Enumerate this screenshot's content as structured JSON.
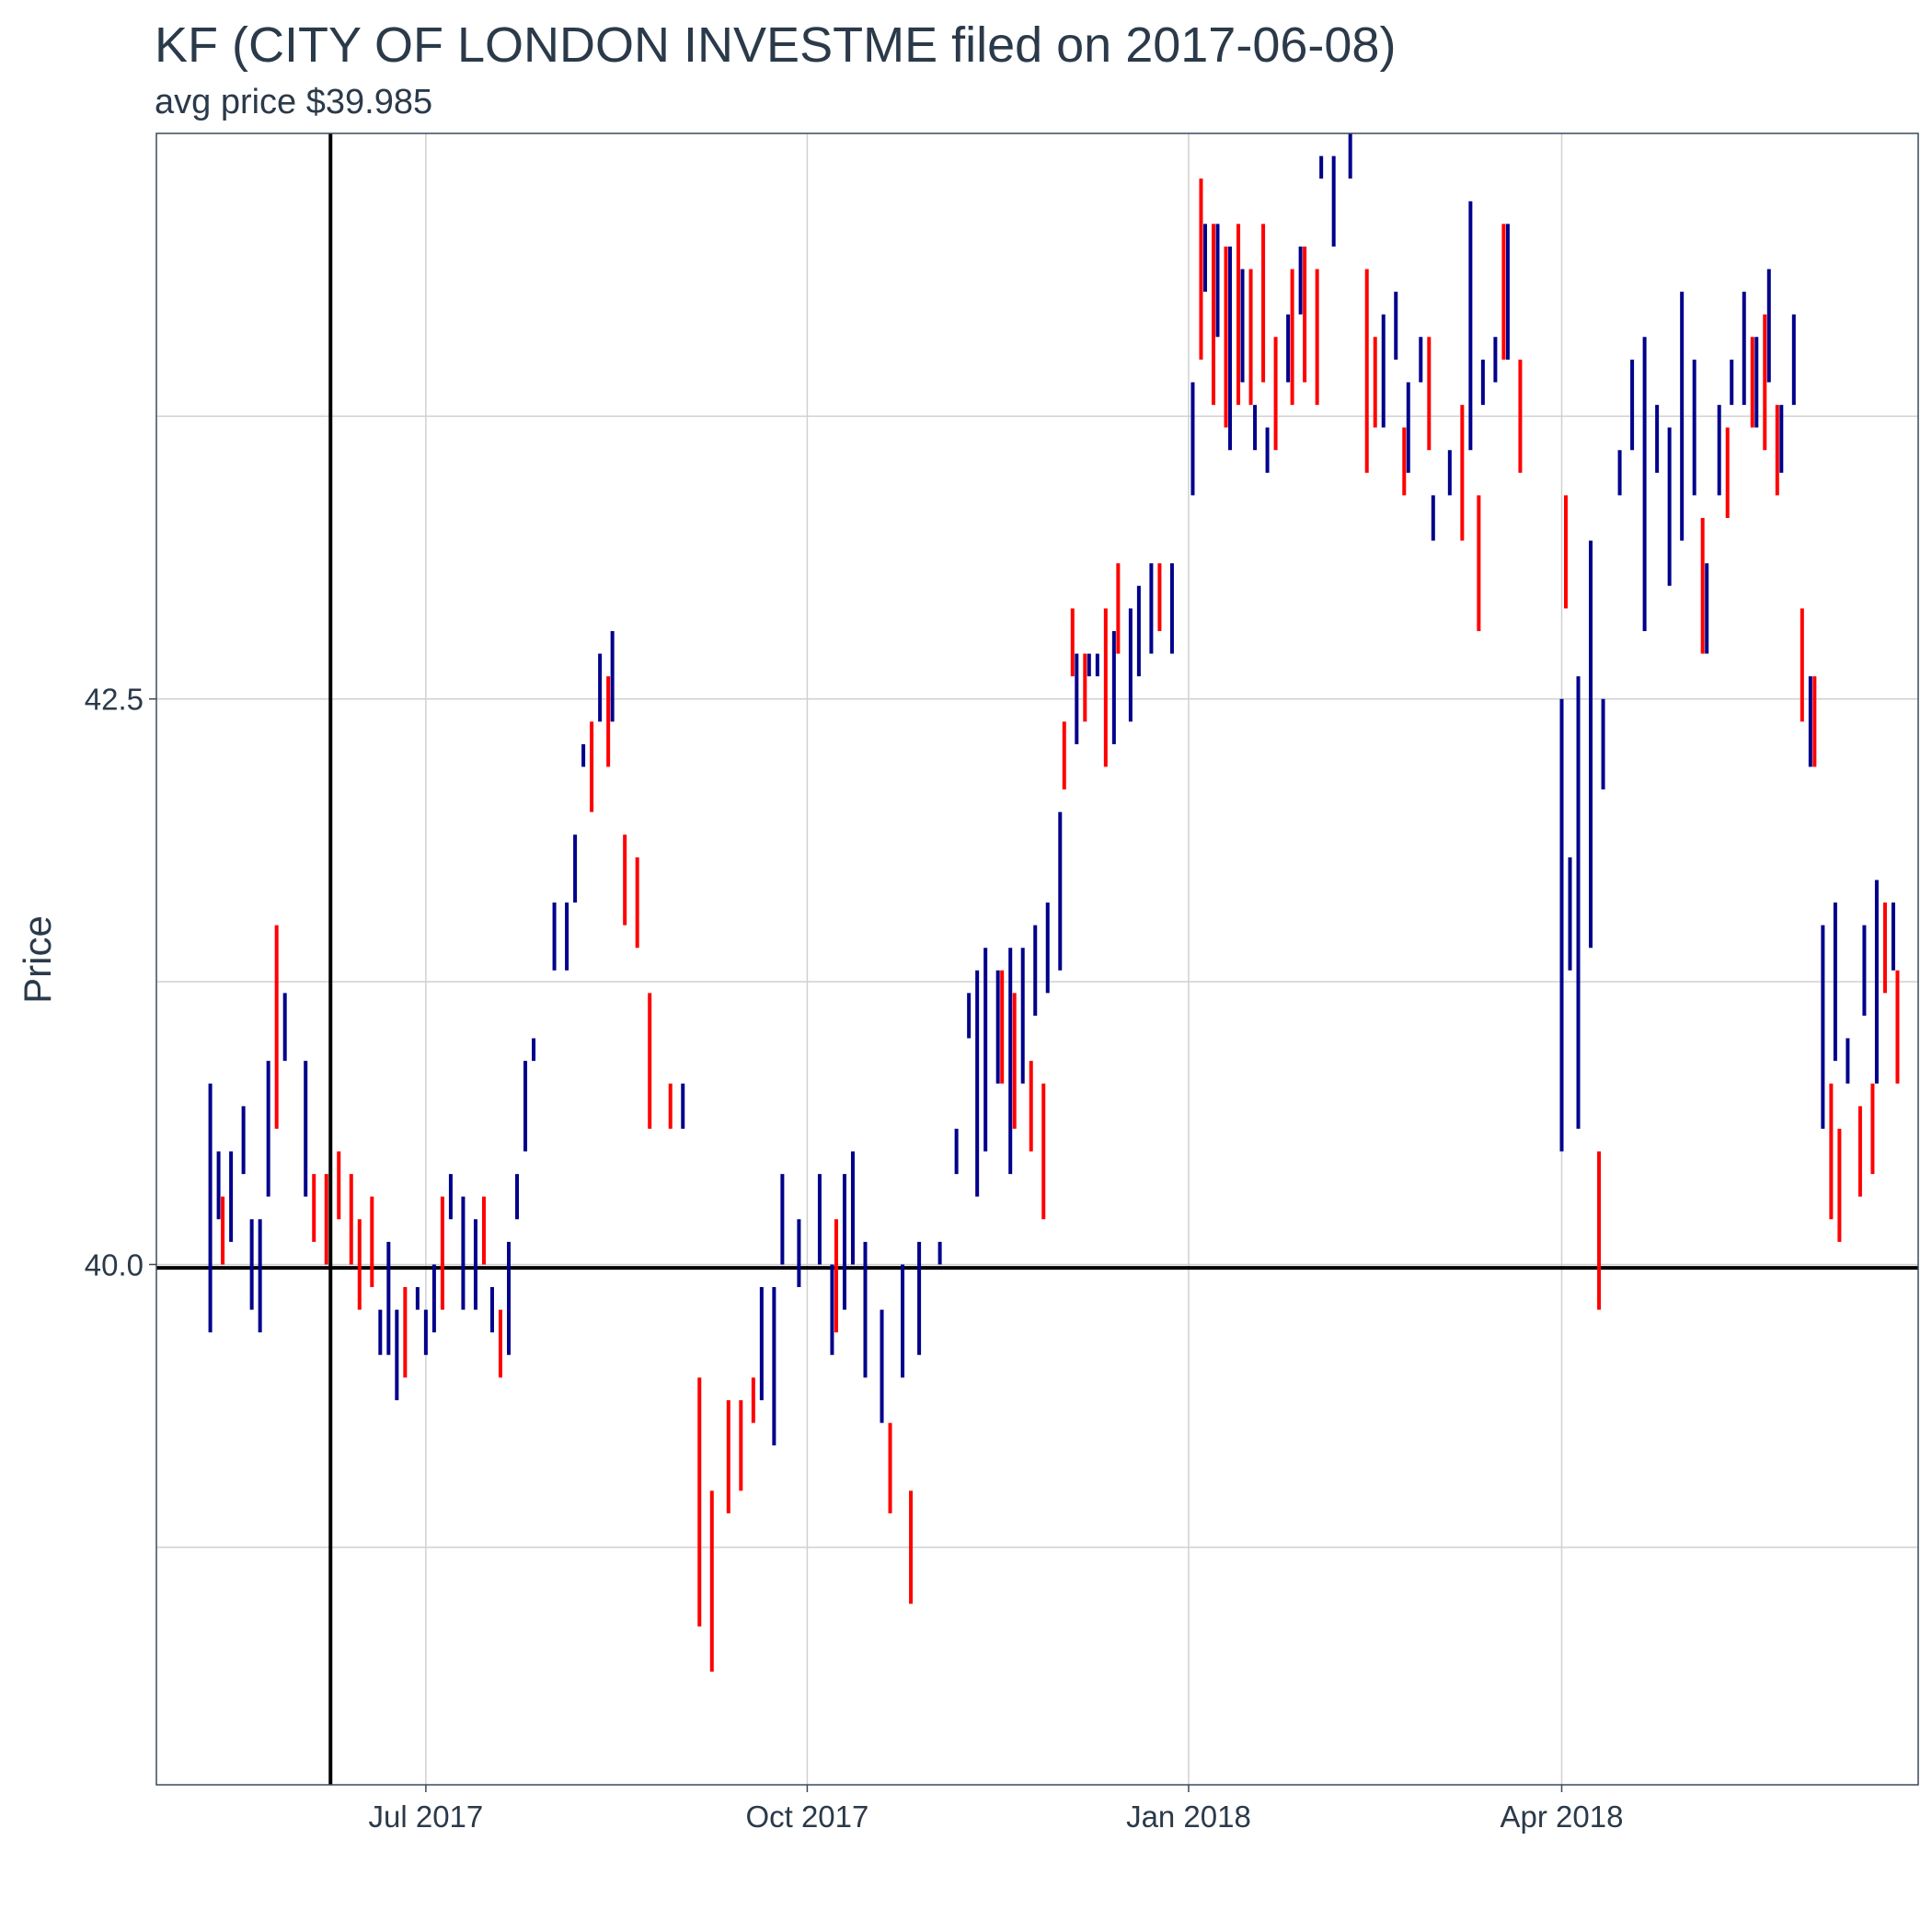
{
  "chart_data": {
    "type": "ohlc-bar",
    "title": "KF (CITY OF LONDON INVESTME filed on 2017-06-08)",
    "subtitle": "avg price $39.985",
    "ylabel": "Price",
    "xlabel": "",
    "xlim": [
      "2017-04-27",
      "2018-06-26"
    ],
    "ylim": [
      37.7,
      45.0
    ],
    "x_ticks": [
      {
        "date": "2017-07-01",
        "label": "Jul 2017"
      },
      {
        "date": "2017-10-01",
        "label": "Oct 2017"
      },
      {
        "date": "2018-01-01",
        "label": "Jan 2018"
      },
      {
        "date": "2018-04-01",
        "label": "Apr 2018"
      }
    ],
    "y_ticks": [
      {
        "value": 40.0,
        "label": "40.0"
      },
      {
        "value": 42.5,
        "label": "42.5"
      }
    ],
    "y_grid": [
      38.75,
      40.0,
      41.25,
      42.5,
      43.75
    ],
    "reference_lines": {
      "vertical_date": "2017-06-08",
      "horizontal_price": 39.985
    },
    "colors": {
      "up": "#00008b",
      "down": "#ff0000",
      "reference": "#000000",
      "grid": "#d0d0d0",
      "border": "#3a4a5a"
    },
    "grid": true,
    "legend": "none",
    "series": [
      {
        "name": "up",
        "bars": [
          [
            "2017-05-10",
            39.7,
            40.8
          ],
          [
            "2017-05-12",
            40.2,
            40.5
          ],
          [
            "2017-05-15",
            40.1,
            40.5
          ],
          [
            "2017-05-18",
            40.4,
            40.7
          ],
          [
            "2017-05-20",
            39.8,
            40.2
          ],
          [
            "2017-05-22",
            39.7,
            40.2
          ],
          [
            "2017-05-24",
            40.3,
            40.9
          ],
          [
            "2017-05-28",
            40.9,
            41.2
          ],
          [
            "2017-06-02",
            40.3,
            40.9
          ],
          [
            "2017-06-20",
            39.6,
            39.8
          ],
          [
            "2017-06-22",
            39.6,
            40.1
          ],
          [
            "2017-06-24",
            39.4,
            39.8
          ],
          [
            "2017-06-29",
            39.8,
            39.9
          ],
          [
            "2017-07-01",
            39.6,
            39.8
          ],
          [
            "2017-07-03",
            39.7,
            40.0
          ],
          [
            "2017-07-07",
            40.2,
            40.4
          ],
          [
            "2017-07-10",
            39.8,
            40.3
          ],
          [
            "2017-07-13",
            39.8,
            40.2
          ],
          [
            "2017-07-17",
            39.7,
            39.9
          ],
          [
            "2017-07-21",
            39.6,
            40.1
          ],
          [
            "2017-07-23",
            40.2,
            40.4
          ],
          [
            "2017-07-25",
            40.5,
            40.9
          ],
          [
            "2017-07-27",
            40.9,
            41.0
          ],
          [
            "2017-08-01",
            41.3,
            41.6
          ],
          [
            "2017-08-04",
            41.3,
            41.6
          ],
          [
            "2017-08-06",
            41.6,
            41.9
          ],
          [
            "2017-08-08",
            42.2,
            42.3
          ],
          [
            "2017-08-12",
            42.4,
            42.7
          ],
          [
            "2017-08-15",
            42.4,
            42.8
          ],
          [
            "2017-09-01",
            40.6,
            40.8
          ],
          [
            "2017-09-20",
            39.4,
            39.9
          ],
          [
            "2017-09-23",
            39.2,
            39.9
          ],
          [
            "2017-09-25",
            40.0,
            40.4
          ],
          [
            "2017-09-29",
            39.9,
            40.2
          ],
          [
            "2017-10-04",
            40.0,
            40.4
          ],
          [
            "2017-10-07",
            39.6,
            40.0
          ],
          [
            "2017-10-10",
            39.8,
            40.4
          ],
          [
            "2017-10-12",
            40.0,
            40.5
          ],
          [
            "2017-10-15",
            39.5,
            40.1
          ],
          [
            "2017-10-19",
            39.3,
            39.8
          ],
          [
            "2017-10-24",
            39.5,
            40.0
          ],
          [
            "2017-10-28",
            39.6,
            40.1
          ],
          [
            "2017-11-02",
            40.0,
            40.1
          ],
          [
            "2017-11-06",
            40.4,
            40.6
          ],
          [
            "2017-11-09",
            41.0,
            41.2
          ],
          [
            "2017-11-11",
            40.3,
            41.3
          ],
          [
            "2017-11-13",
            40.5,
            41.4
          ],
          [
            "2017-11-16",
            40.8,
            41.3
          ],
          [
            "2017-11-19",
            40.4,
            41.4
          ],
          [
            "2017-11-22",
            40.8,
            41.4
          ],
          [
            "2017-11-25",
            41.1,
            41.5
          ],
          [
            "2017-11-28",
            41.2,
            41.6
          ],
          [
            "2017-12-01",
            41.3,
            42.0
          ],
          [
            "2017-12-05",
            42.3,
            42.7
          ],
          [
            "2017-12-08",
            42.6,
            42.7
          ],
          [
            "2017-12-10",
            42.6,
            42.7
          ],
          [
            "2017-12-14",
            42.3,
            42.8
          ],
          [
            "2017-12-18",
            42.4,
            42.9
          ],
          [
            "2017-12-20",
            42.6,
            43.0
          ],
          [
            "2017-12-23",
            42.7,
            43.1
          ],
          [
            "2017-12-28",
            42.7,
            43.1
          ],
          [
            "2018-01-02",
            43.4,
            43.9
          ],
          [
            "2018-01-05",
            44.3,
            44.6
          ],
          [
            "2018-01-08",
            44.1,
            44.6
          ],
          [
            "2018-01-11",
            43.6,
            44.5
          ],
          [
            "2018-01-14",
            43.9,
            44.4
          ],
          [
            "2018-01-17",
            43.6,
            43.8
          ],
          [
            "2018-01-20",
            43.5,
            43.7
          ],
          [
            "2018-01-25",
            43.9,
            44.2
          ],
          [
            "2018-01-28",
            44.2,
            44.5
          ],
          [
            "2018-02-02",
            44.8,
            44.9
          ],
          [
            "2018-02-05",
            44.5,
            44.9
          ],
          [
            "2018-02-09",
            44.8,
            45.0
          ],
          [
            "2018-02-17",
            43.7,
            44.2
          ],
          [
            "2018-02-20",
            44.0,
            44.3
          ],
          [
            "2018-02-23",
            43.5,
            43.9
          ],
          [
            "2018-02-26",
            43.9,
            44.1
          ],
          [
            "2018-03-01",
            43.2,
            43.4
          ],
          [
            "2018-03-05",
            43.4,
            43.6
          ],
          [
            "2018-03-10",
            43.6,
            44.7
          ],
          [
            "2018-03-13",
            43.8,
            44.0
          ],
          [
            "2018-03-16",
            43.9,
            44.1
          ],
          [
            "2018-03-19",
            44.0,
            44.6
          ],
          [
            "2018-04-01",
            40.5,
            42.5
          ],
          [
            "2018-04-03",
            41.3,
            41.8
          ],
          [
            "2018-04-05",
            40.6,
            42.6
          ],
          [
            "2018-04-08",
            41.4,
            43.2
          ],
          [
            "2018-04-11",
            42.1,
            42.5
          ],
          [
            "2018-04-15",
            43.4,
            43.6
          ],
          [
            "2018-04-18",
            43.6,
            44.0
          ],
          [
            "2018-04-21",
            42.8,
            44.1
          ],
          [
            "2018-04-24",
            43.5,
            43.8
          ],
          [
            "2018-04-27",
            43.0,
            43.7
          ],
          [
            "2018-04-30",
            43.2,
            44.3
          ],
          [
            "2018-05-03",
            43.4,
            44.0
          ],
          [
            "2018-05-06",
            42.7,
            43.1
          ],
          [
            "2018-05-09",
            43.4,
            43.8
          ],
          [
            "2018-05-12",
            43.8,
            44.0
          ],
          [
            "2018-05-15",
            43.8,
            44.3
          ],
          [
            "2018-05-18",
            43.7,
            44.1
          ],
          [
            "2018-05-21",
            43.9,
            44.4
          ],
          [
            "2018-05-24",
            43.5,
            43.8
          ],
          [
            "2018-05-27",
            43.8,
            44.2
          ],
          [
            "2018-05-31",
            42.2,
            42.6
          ],
          [
            "2018-06-03",
            40.6,
            41.5
          ],
          [
            "2018-06-06",
            40.9,
            41.6
          ],
          [
            "2018-06-09",
            40.8,
            41.0
          ],
          [
            "2018-06-13",
            41.1,
            41.5
          ],
          [
            "2018-06-16",
            40.8,
            41.7
          ],
          [
            "2018-06-20",
            41.3,
            41.6
          ]
        ]
      },
      {
        "name": "down",
        "bars": [
          [
            "2017-05-13",
            40.0,
            40.3
          ],
          [
            "2017-05-26",
            40.6,
            41.5
          ],
          [
            "2017-06-04",
            40.1,
            40.4
          ],
          [
            "2017-06-07",
            40.0,
            40.4
          ],
          [
            "2017-06-10",
            40.2,
            40.5
          ],
          [
            "2017-06-13",
            40.0,
            40.4
          ],
          [
            "2017-06-15",
            39.8,
            40.2
          ],
          [
            "2017-06-18",
            39.9,
            40.3
          ],
          [
            "2017-06-26",
            39.5,
            39.9
          ],
          [
            "2017-07-05",
            39.8,
            40.3
          ],
          [
            "2017-07-15",
            40.0,
            40.3
          ],
          [
            "2017-07-19",
            39.5,
            39.8
          ],
          [
            "2017-08-10",
            42.0,
            42.4
          ],
          [
            "2017-08-14",
            42.2,
            42.6
          ],
          [
            "2017-08-18",
            41.5,
            41.9
          ],
          [
            "2017-08-21",
            41.4,
            41.8
          ],
          [
            "2017-08-24",
            40.6,
            41.2
          ],
          [
            "2017-08-29",
            40.6,
            40.8
          ],
          [
            "2017-09-05",
            38.4,
            39.5
          ],
          [
            "2017-09-08",
            38.2,
            39.0
          ],
          [
            "2017-09-12",
            38.9,
            39.4
          ],
          [
            "2017-09-15",
            39.0,
            39.4
          ],
          [
            "2017-09-18",
            39.3,
            39.5
          ],
          [
            "2017-10-08",
            39.7,
            40.2
          ],
          [
            "2017-10-21",
            38.9,
            39.3
          ],
          [
            "2017-10-26",
            38.5,
            39.0
          ],
          [
            "2017-11-17",
            40.8,
            41.3
          ],
          [
            "2017-11-20",
            40.6,
            41.2
          ],
          [
            "2017-11-24",
            40.5,
            40.9
          ],
          [
            "2017-11-27",
            40.2,
            40.8
          ],
          [
            "2017-12-02",
            42.1,
            42.4
          ],
          [
            "2017-12-04",
            42.6,
            42.9
          ],
          [
            "2017-12-07",
            42.4,
            42.7
          ],
          [
            "2017-12-12",
            42.2,
            42.9
          ],
          [
            "2017-12-15",
            42.7,
            43.1
          ],
          [
            "2017-12-25",
            42.8,
            43.1
          ],
          [
            "2018-01-04",
            44.0,
            44.8
          ],
          [
            "2018-01-07",
            43.8,
            44.6
          ],
          [
            "2018-01-10",
            43.7,
            44.5
          ],
          [
            "2018-01-13",
            43.8,
            44.6
          ],
          [
            "2018-01-16",
            43.8,
            44.4
          ],
          [
            "2018-01-19",
            43.9,
            44.6
          ],
          [
            "2018-01-22",
            43.6,
            44.1
          ],
          [
            "2018-01-26",
            43.8,
            44.4
          ],
          [
            "2018-01-29",
            43.9,
            44.5
          ],
          [
            "2018-02-01",
            43.8,
            44.4
          ],
          [
            "2018-02-13",
            43.5,
            44.4
          ],
          [
            "2018-02-15",
            43.7,
            44.1
          ],
          [
            "2018-02-22",
            43.4,
            43.7
          ],
          [
            "2018-02-28",
            43.6,
            44.1
          ],
          [
            "2018-03-08",
            43.2,
            43.8
          ],
          [
            "2018-03-12",
            42.8,
            43.4
          ],
          [
            "2018-03-18",
            44.0,
            44.6
          ],
          [
            "2018-03-22",
            43.5,
            44.0
          ],
          [
            "2018-04-10",
            39.8,
            40.5
          ],
          [
            "2018-04-02",
            42.9,
            43.4
          ],
          [
            "2018-05-05",
            42.7,
            43.3
          ],
          [
            "2018-05-11",
            43.3,
            43.7
          ],
          [
            "2018-05-17",
            43.7,
            44.1
          ],
          [
            "2018-05-20",
            43.6,
            44.2
          ],
          [
            "2018-05-23",
            43.4,
            43.8
          ],
          [
            "2018-05-29",
            42.4,
            42.9
          ],
          [
            "2018-06-01",
            42.2,
            42.6
          ],
          [
            "2018-06-05",
            40.2,
            40.8
          ],
          [
            "2018-06-07",
            40.1,
            40.6
          ],
          [
            "2018-06-12",
            40.3,
            40.7
          ],
          [
            "2018-06-15",
            40.4,
            40.8
          ],
          [
            "2018-06-18",
            41.2,
            41.6
          ],
          [
            "2018-06-21",
            40.8,
            41.3
          ]
        ]
      }
    ]
  }
}
